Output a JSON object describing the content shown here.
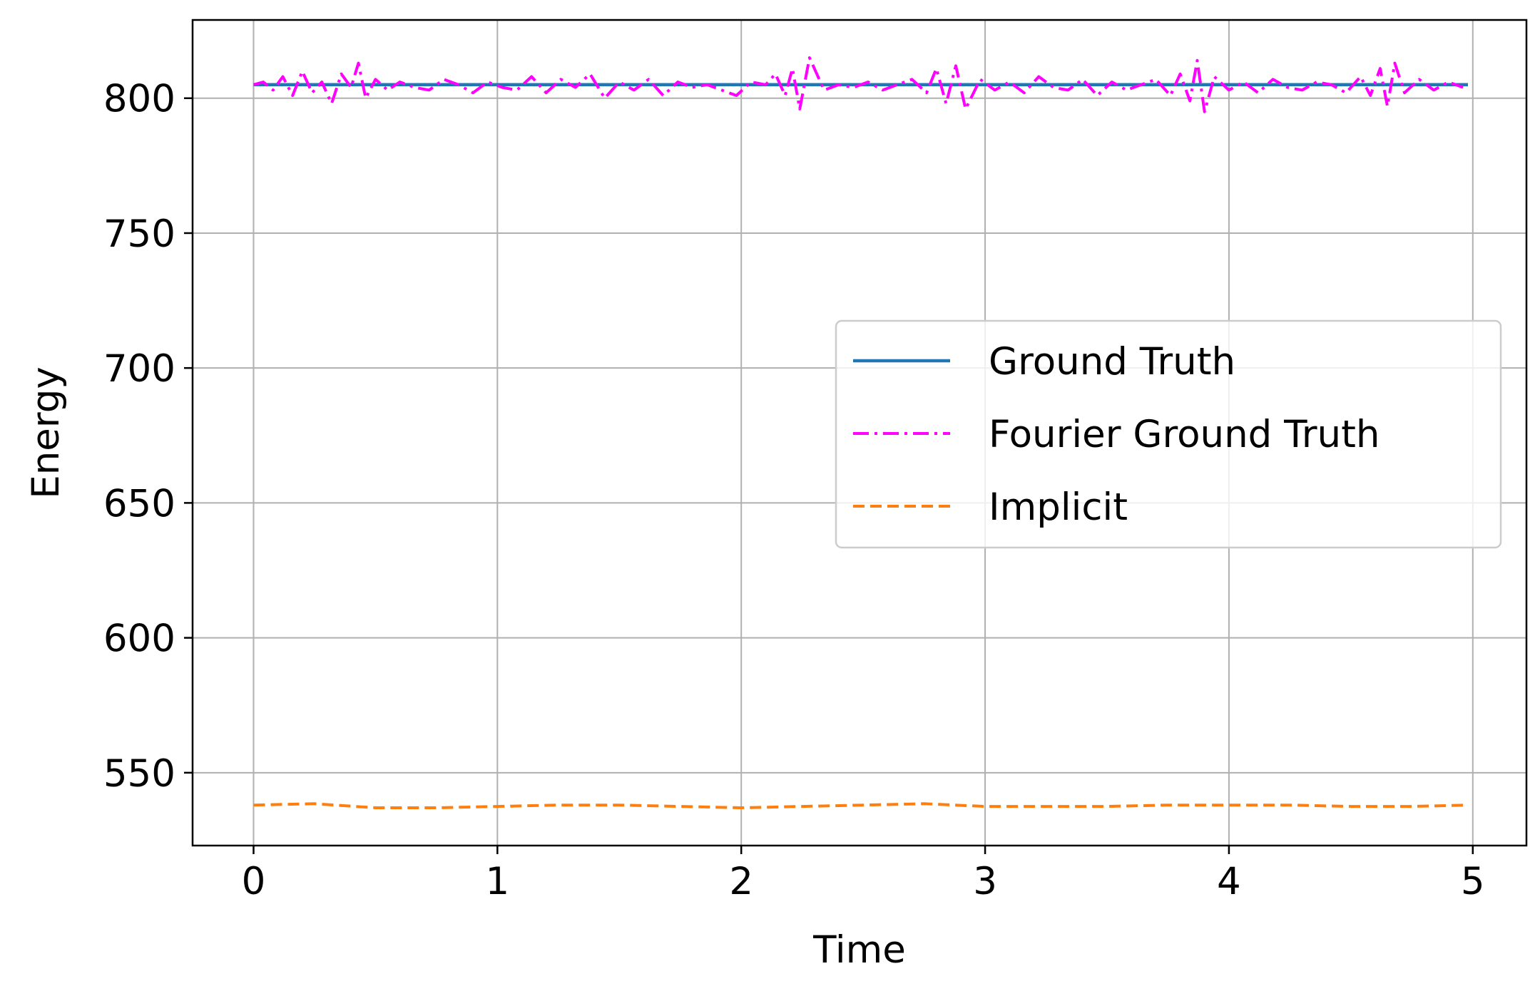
{
  "colors": {
    "ground_truth": "#1f77b4",
    "fourier_ground_truth": "#ff00ff",
    "implicit": "#ff7f0e",
    "grid": "#b0b0b0",
    "axes": "#000000",
    "legend_border": "#cccccc"
  },
  "chart_data": {
    "type": "line",
    "title": "",
    "xlabel": "Time",
    "ylabel": "Energy",
    "xlim": [
      -0.25,
      5.22
    ],
    "ylim": [
      523,
      829
    ],
    "xticks": [
      0,
      1,
      2,
      3,
      4,
      5
    ],
    "xtick_labels": [
      "0",
      "1",
      "2",
      "3",
      "4",
      "5"
    ],
    "yticks": [
      550,
      600,
      650,
      700,
      750,
      800
    ],
    "ytick_labels": [
      "550",
      "600",
      "650",
      "700",
      "750",
      "800"
    ],
    "grid": true,
    "legend_position": "center-right",
    "legend": [
      "Ground Truth",
      "Fourier Ground Truth",
      "Implicit"
    ],
    "series": [
      {
        "name": "Ground Truth",
        "style": "solid",
        "x": [
          0,
          0.5,
          1,
          1.5,
          2,
          2.5,
          3,
          3.5,
          4,
          4.5,
          4.98
        ],
        "y": [
          805,
          805,
          805,
          805,
          805,
          805,
          805,
          805,
          805,
          805,
          805
        ]
      },
      {
        "name": "Fourier Ground Truth",
        "style": "dashdot",
        "x": [
          0.0,
          0.04,
          0.08,
          0.12,
          0.16,
          0.2,
          0.24,
          0.28,
          0.32,
          0.36,
          0.4,
          0.43,
          0.46,
          0.5,
          0.55,
          0.6,
          0.66,
          0.72,
          0.78,
          0.84,
          0.9,
          0.96,
          1.02,
          1.08,
          1.14,
          1.2,
          1.26,
          1.32,
          1.38,
          1.44,
          1.5,
          1.56,
          1.62,
          1.68,
          1.74,
          1.8,
          1.86,
          1.92,
          1.98,
          2.04,
          2.1,
          2.14,
          2.18,
          2.21,
          2.24,
          2.28,
          2.34,
          2.4,
          2.46,
          2.52,
          2.58,
          2.64,
          2.7,
          2.76,
          2.8,
          2.84,
          2.88,
          2.92,
          2.98,
          3.04,
          3.1,
          3.16,
          3.22,
          3.28,
          3.34,
          3.4,
          3.46,
          3.52,
          3.58,
          3.64,
          3.7,
          3.76,
          3.8,
          3.84,
          3.87,
          3.9,
          3.94,
          4.0,
          4.06,
          4.12,
          4.18,
          4.24,
          4.3,
          4.36,
          4.42,
          4.48,
          4.54,
          4.58,
          4.62,
          4.65,
          4.68,
          4.72,
          4.78,
          4.84,
          4.9,
          4.96
        ],
        "y": [
          805,
          806,
          803,
          808,
          801,
          810,
          802,
          806,
          798,
          809,
          804,
          813,
          800,
          807,
          803,
          806,
          804,
          803,
          807,
          805,
          802,
          806,
          804,
          803,
          808,
          802,
          807,
          804,
          809,
          800,
          806,
          803,
          807,
          801,
          806,
          804,
          805,
          803,
          801,
          806,
          805,
          809,
          801,
          811,
          796,
          815,
          803,
          805,
          804,
          806,
          803,
          805,
          807,
          802,
          811,
          798,
          812,
          796,
          807,
          803,
          806,
          802,
          808,
          804,
          803,
          807,
          801,
          806,
          803,
          805,
          807,
          801,
          809,
          799,
          814,
          795,
          808,
          803,
          806,
          802,
          807,
          804,
          803,
          806,
          805,
          802,
          808,
          801,
          811,
          797,
          813,
          802,
          807,
          803,
          806,
          804
        ]
      },
      {
        "name": "Implicit",
        "style": "dashed",
        "x": [
          0,
          0.25,
          0.5,
          0.75,
          1.0,
          1.25,
          1.5,
          1.75,
          2.0,
          2.25,
          2.5,
          2.75,
          3.0,
          3.25,
          3.5,
          3.75,
          4.0,
          4.25,
          4.5,
          4.75,
          4.98
        ],
        "y": [
          538,
          538.5,
          537,
          537,
          537.5,
          538,
          538,
          537.5,
          537,
          537.5,
          538,
          538.5,
          537.5,
          537.5,
          537.5,
          538,
          538,
          538,
          537.5,
          537.5,
          538
        ]
      }
    ]
  }
}
